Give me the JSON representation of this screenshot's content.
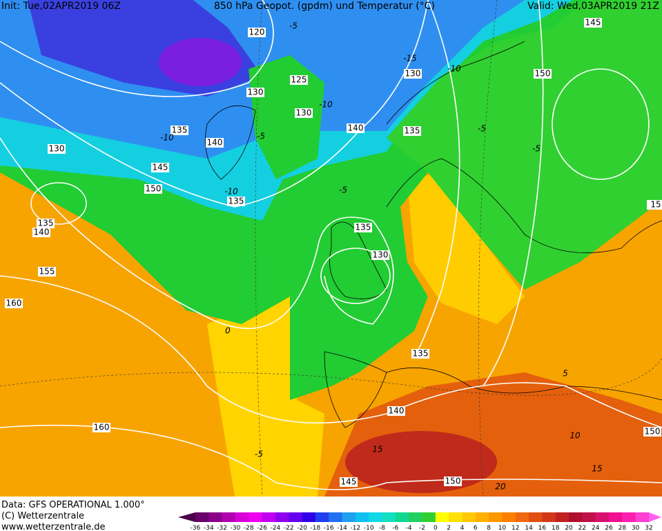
{
  "header": {
    "init": "Init: Tue,02APR2019 06Z",
    "title": "850 hPa Geopot. (gpdm) und Temperatur (°C)",
    "valid": "Valid: Wed,03APR2019 21Z"
  },
  "footer": {
    "source": "Data: GFS OPERATIONAL 1.000°",
    "copyright": "(C) Wetterzentrale",
    "url": "www.wetterzentrale.de"
  },
  "map": {
    "height_labels": [
      120,
      125,
      130,
      130,
      130,
      135,
      140,
      145,
      150,
      135,
      135,
      140,
      155,
      160,
      130,
      150,
      145,
      140,
      135,
      135,
      130,
      135,
      140,
      160,
      150,
      145,
      150,
      15
    ],
    "temperature_labels": [
      -15,
      -10,
      -10,
      -5,
      -10,
      -5,
      -5,
      -5,
      -10,
      0,
      -5,
      5,
      10,
      15,
      15,
      20,
      -5
    ]
  },
  "colorbar": {
    "labels": [
      -36,
      -34,
      -32,
      -30,
      -28,
      -26,
      -24,
      -22,
      -20,
      -18,
      -16,
      -14,
      -12,
      -10,
      -8,
      -6,
      -4,
      -2,
      0,
      2,
      4,
      6,
      8,
      10,
      12,
      14,
      16,
      18,
      20,
      22,
      24,
      26,
      28,
      30,
      32
    ],
    "colors": [
      "#4a0048",
      "#6a006a",
      "#8a008a",
      "#b000b0",
      "#d800d8",
      "#f000f0",
      "#c000f0",
      "#9000f0",
      "#6800f0",
      "#3000e8",
      "#2040f0",
      "#2070f0",
      "#20a0f0",
      "#10c0f0",
      "#10d8e8",
      "#10e0c0",
      "#10d890",
      "#20d060",
      "#30d030",
      "#ffff00",
      "#ffe000",
      "#ffc800",
      "#ffb000",
      "#ff9800",
      "#ff8000",
      "#f06810",
      "#e05010",
      "#d03818",
      "#c02020",
      "#b01030",
      "#c01048",
      "#d81070",
      "#f01090",
      "#ff20b0",
      "#ff40d0",
      "#ff60f0"
    ]
  }
}
